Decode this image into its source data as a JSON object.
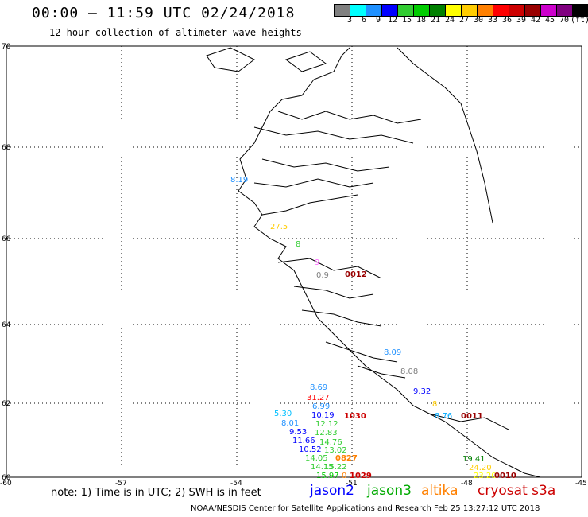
{
  "header": {
    "title": "00:00 — 11:59 UTC 02/24/2018",
    "subtitle": "12 hour collection of altimeter wave heights"
  },
  "legend": {
    "labels": [
      "3",
      "6",
      "9",
      "12",
      "15",
      "18",
      "21",
      "24",
      "27",
      "30",
      "33",
      "36",
      "39",
      "42",
      "45",
      "70",
      "(ft)"
    ],
    "colors": [
      "#808080",
      "#00ffff",
      "#1e90ff",
      "#0000ff",
      "#32cd32",
      "#00cc00",
      "#008000",
      "#ffff00",
      "#ffcc00",
      "#ff8000",
      "#ff0000",
      "#cc0000",
      "#990000",
      "#cc00cc",
      "#800080",
      "#000000"
    ]
  },
  "axes": {
    "lat_labels": [
      "70",
      "68",
      "66",
      "64",
      "62",
      "60"
    ],
    "lon_labels": [
      "-60",
      "-57",
      "-54",
      "-51",
      "-48",
      "-45"
    ]
  },
  "observations": [
    {
      "text": "8.19",
      "color": "#1e90ff"
    },
    {
      "text": "27.5",
      "color": "#ffcc00"
    },
    {
      "text": "8",
      "color": "#32cd32"
    },
    {
      "text": "9",
      "color": "#ff66ff"
    },
    {
      "text": "0.9",
      "color": "#808080"
    },
    {
      "text": "0012",
      "color": "#990000"
    },
    {
      "text": "8.09",
      "color": "#1e90ff"
    },
    {
      "text": "8.08",
      "color": "#808080"
    },
    {
      "text": "9.32",
      "color": "#0000ff"
    },
    {
      "text": "8",
      "color": "#ffcc00"
    },
    {
      "text": "8.76",
      "color": "#00aaff"
    },
    {
      "text": "0011",
      "color": "#990000"
    },
    {
      "text": "8.69",
      "color": "#1e90ff"
    },
    {
      "text": "31.27",
      "color": "#ff0000"
    },
    {
      "text": "6.99",
      "color": "#1e90ff"
    },
    {
      "text": "5.30",
      "color": "#00bfff"
    },
    {
      "text": "10.19",
      "color": "#0000ff"
    },
    {
      "text": "1030",
      "color": "#cc0000"
    },
    {
      "text": "8.01",
      "color": "#1e90ff"
    },
    {
      "text": "12.12",
      "color": "#32cd32"
    },
    {
      "text": "9.53",
      "color": "#0000ff"
    },
    {
      "text": "12.83",
      "color": "#32cd32"
    },
    {
      "text": "11.66",
      "color": "#0000ff"
    },
    {
      "text": "14.76",
      "color": "#32cd32"
    },
    {
      "text": "10.52",
      "color": "#0000ff"
    },
    {
      "text": "13.02",
      "color": "#32cd32"
    },
    {
      "text": "14.05",
      "color": "#32cd32"
    },
    {
      "text": "0827",
      "color": "#ff8000"
    },
    {
      "text": "14.15",
      "color": "#32cd32"
    },
    {
      "text": "15.22",
      "color": "#32cd32"
    },
    {
      "text": "15.97",
      "color": "#00cc00"
    },
    {
      "text": "0",
      "color": "#ff8000"
    },
    {
      "text": "1029",
      "color": "#cc0000"
    },
    {
      "text": "19.41",
      "color": "#008000"
    },
    {
      "text": "24.20",
      "color": "#ffcc00"
    },
    {
      "text": "23.20",
      "color": "#ffff00"
    },
    {
      "text": "0010",
      "color": "#990000"
    }
  ],
  "footer": {
    "note": "note:  1) Time is in UTC;  2) SWH is in feet",
    "satellites": [
      {
        "name": "jason2",
        "color": "#0000ff"
      },
      {
        "name": "jason3",
        "color": "#00aa00"
      },
      {
        "name": "altika",
        "color": "#ff8000"
      },
      {
        "name": "cryosat s3a",
        "color": "#cc0000"
      }
    ],
    "credit": "NOAA/NESDIS Center for Satellite Applications and Research     Feb 25 13:27:12 UTC 2018"
  }
}
